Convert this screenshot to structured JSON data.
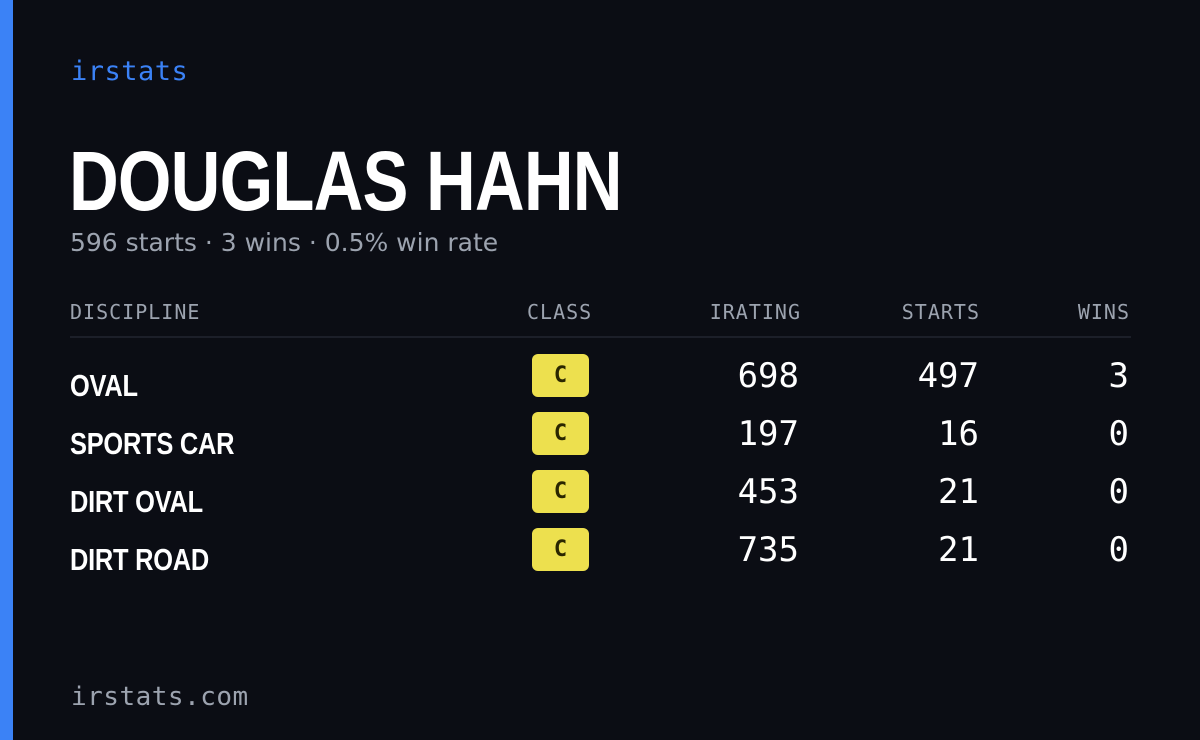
{
  "brand": "irstats",
  "driver": {
    "name": "DOUGLAS HAHN",
    "summary": "596 starts · 3 wins · 0.5% win rate"
  },
  "table": {
    "headers": {
      "discipline": "DISCIPLINE",
      "class": "CLASS",
      "irating": "IRATING",
      "starts": "STARTS",
      "wins": "WINS"
    },
    "rows": [
      {
        "discipline": "OVAL",
        "class": "C",
        "irating": "698",
        "starts": "497",
        "wins": "3"
      },
      {
        "discipline": "SPORTS CAR",
        "class": "C",
        "irating": "197",
        "starts": "16",
        "wins": "0"
      },
      {
        "discipline": "DIRT OVAL",
        "class": "C",
        "irating": "453",
        "starts": "21",
        "wins": "0"
      },
      {
        "discipline": "DIRT ROAD",
        "class": "C",
        "irating": "735",
        "starts": "21",
        "wins": "0"
      }
    ]
  },
  "footer": "irstats.com",
  "colors": {
    "background": "#0b0d14",
    "accent": "#3b82f6",
    "class_c_badge": "#ede04e",
    "muted_text": "#9ca3af"
  }
}
